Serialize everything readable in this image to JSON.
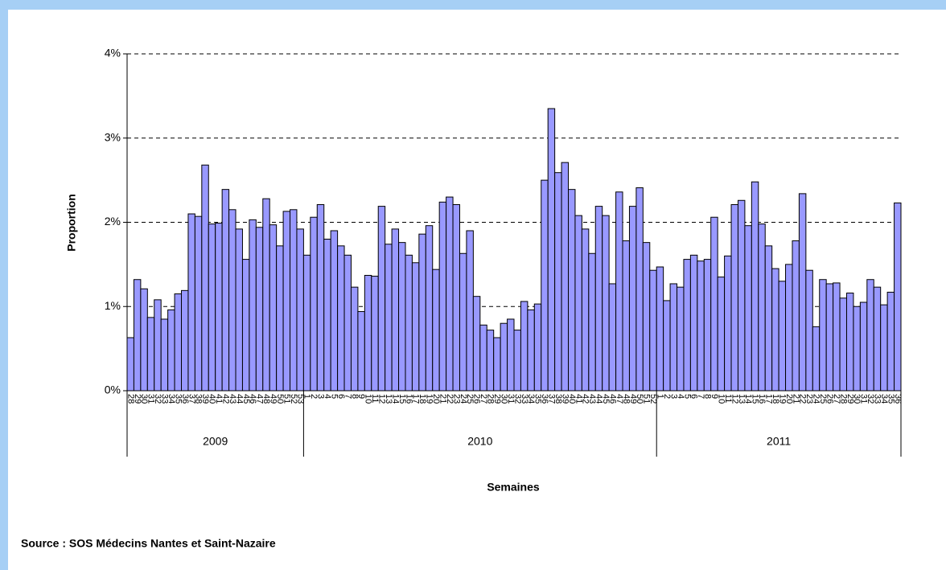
{
  "chart_data": {
    "type": "bar",
    "y_label": "Proportion",
    "x_label": "Semaines",
    "source": "Source : SOS Médecins Nantes et Saint-Nazaire",
    "color": "#9999ff",
    "categories": [
      "28",
      "29",
      "30",
      "31",
      "32",
      "33",
      "34",
      "35",
      "36",
      "37",
      "38",
      "39",
      "40",
      "41",
      "42",
      "43",
      "44",
      "45",
      "46",
      "47",
      "48",
      "49",
      "50",
      "51",
      "52",
      "53",
      "1",
      "2",
      "3",
      "4",
      "5",
      "6",
      "7",
      "8",
      "9",
      "10",
      "11",
      "12",
      "13",
      "14",
      "15",
      "16",
      "17",
      "18",
      "19",
      "20",
      "21",
      "22",
      "23",
      "24",
      "25",
      "26",
      "27",
      "28",
      "29",
      "30",
      "31",
      "32",
      "33",
      "34",
      "35",
      "36",
      "37",
      "38",
      "39",
      "40",
      "41",
      "42",
      "43",
      "44",
      "45",
      "46",
      "47",
      "48",
      "49",
      "50",
      "51",
      "52",
      "1",
      "2",
      "3",
      "4",
      "5",
      "6",
      "7",
      "8",
      "9",
      "10",
      "11",
      "12",
      "13",
      "14",
      "15",
      "16",
      "17",
      "18",
      "19",
      "20",
      "21",
      "22",
      "23",
      "24",
      "25",
      "26",
      "27",
      "28",
      "29",
      "30",
      "31",
      "32",
      "33",
      "34",
      "35",
      "36"
    ],
    "groups": [
      {
        "name": "2009",
        "count": 26
      },
      {
        "name": "2010",
        "count": 52
      },
      {
        "name": "2011",
        "count": 36
      }
    ],
    "values": [
      0.63,
      1.32,
      1.21,
      0.87,
      1.08,
      0.85,
      0.96,
      1.15,
      1.19,
      2.1,
      2.07,
      2.68,
      1.98,
      1.99,
      2.39,
      2.15,
      1.92,
      1.56,
      2.03,
      1.94,
      2.28,
      1.97,
      1.72,
      2.13,
      2.15,
      1.92,
      1.61,
      2.06,
      2.21,
      1.8,
      1.9,
      1.72,
      1.61,
      1.23,
      0.94,
      1.37,
      1.36,
      2.19,
      1.74,
      1.92,
      1.76,
      1.61,
      1.52,
      1.86,
      1.96,
      1.44,
      2.24,
      2.3,
      2.21,
      1.63,
      1.9,
      1.12,
      0.78,
      0.72,
      0.63,
      0.8,
      0.85,
      0.72,
      1.06,
      0.96,
      1.03,
      2.5,
      3.35,
      2.59,
      2.71,
      2.39,
      2.08,
      1.92,
      1.63,
      2.19,
      2.08,
      1.27,
      2.36,
      1.78,
      2.19,
      2.41,
      1.76,
      1.43,
      1.47,
      1.07,
      1.27,
      1.23,
      1.56,
      1.61,
      1.54,
      1.56,
      2.06,
      1.35,
      1.6,
      2.21,
      2.26,
      1.96,
      2.48,
      1.98,
      1.72,
      1.45,
      1.3,
      1.5,
      1.78,
      2.34,
      1.43,
      0.76,
      1.32,
      1.27,
      1.28,
      1.1,
      1.16,
      1.0,
      1.05,
      1.32,
      1.23,
      1.02,
      1.17,
      2.23
    ],
    "ylim": [
      0,
      4
    ],
    "yticks": [
      {
        "value": 0,
        "label": "0%"
      },
      {
        "value": 1,
        "label": "1%"
      },
      {
        "value": 2,
        "label": "2%"
      },
      {
        "value": 3,
        "label": "3%"
      },
      {
        "value": 4,
        "label": "4%"
      }
    ],
    "grid": true
  }
}
